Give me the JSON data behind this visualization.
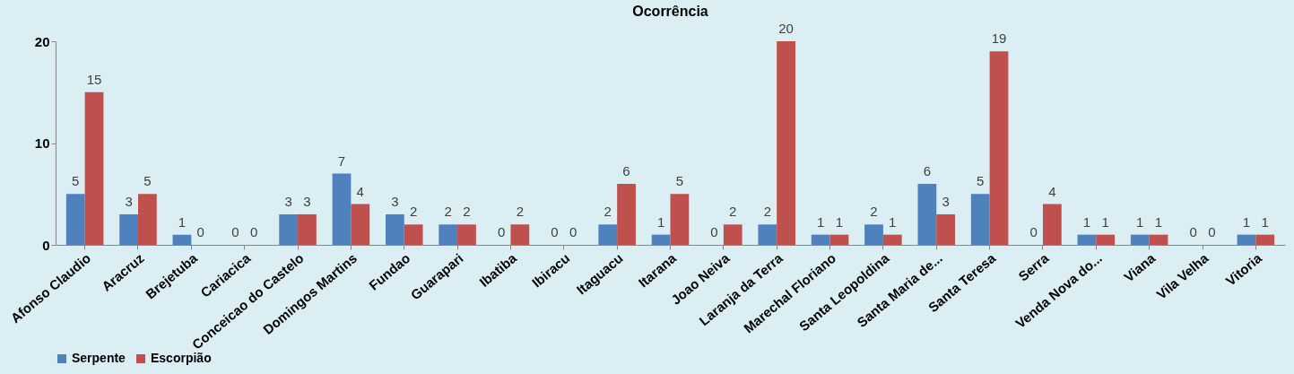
{
  "chart_data": {
    "type": "bar",
    "title": "Ocorrência",
    "categories": [
      "Afonso Claudio",
      "Aracruz",
      "Brejetuba",
      "Cariacica",
      "Conceicao do Castelo",
      "Domingos Martins",
      "Fundao",
      "Guarapari",
      "Ibatiba",
      "Ibiracu",
      "Itaguacu",
      "Itarana",
      "Joao Neiva",
      "Laranja da Terra",
      "Marechal Floriano",
      "Santa Leopoldina",
      "Santa Maria de...",
      "Santa Teresa",
      "Serra",
      "Venda Nova do...",
      "Viana",
      "Vila Velha",
      "Vitoria"
    ],
    "series": [
      {
        "name": "Serpente",
        "color": "#4f81bd",
        "values": [
          5,
          3,
          1,
          0,
          3,
          7,
          3,
          2,
          0,
          0,
          2,
          1,
          0,
          2,
          1,
          2,
          6,
          5,
          0,
          1,
          1,
          0,
          1
        ]
      },
      {
        "name": "Escorpião",
        "color": "#c0504d",
        "values": [
          15,
          5,
          0,
          0,
          3,
          4,
          2,
          2,
          2,
          0,
          6,
          5,
          2,
          20,
          1,
          1,
          3,
          19,
          4,
          1,
          1,
          0,
          1
        ]
      }
    ],
    "ylim": [
      0,
      20
    ],
    "yticks": [
      0,
      10,
      20
    ],
    "grid": false,
    "legend": "bottom",
    "data_labels": true
  }
}
